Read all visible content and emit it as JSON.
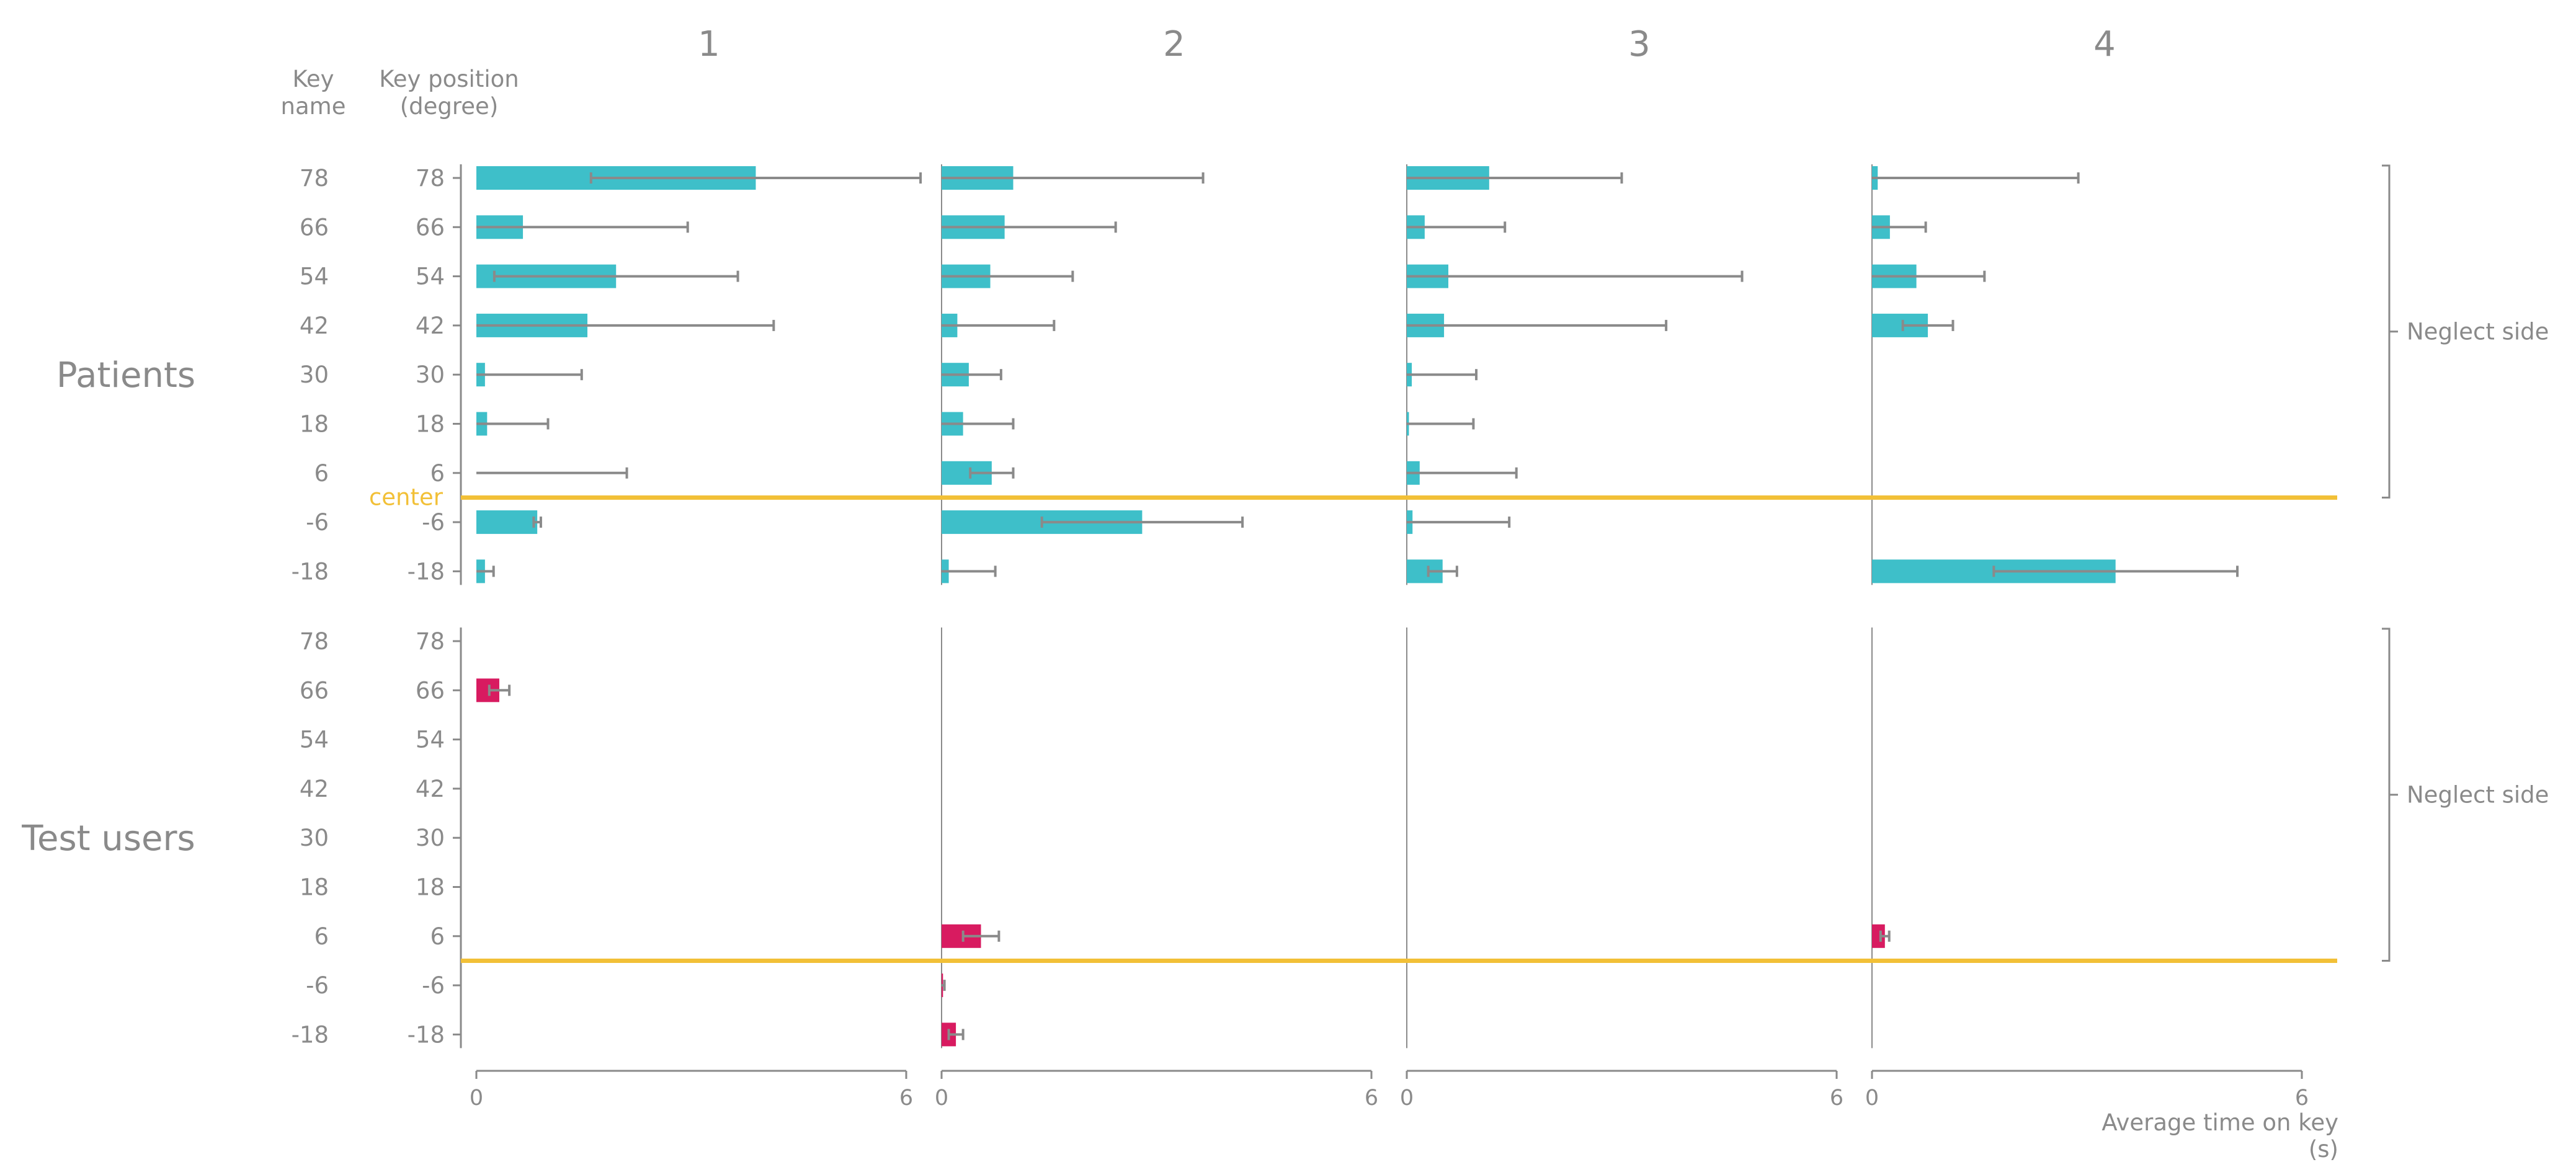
{
  "chart_data": {
    "type": "bar",
    "orientation": "horizontal",
    "panel_titles": [
      "1",
      "2",
      "3",
      "4"
    ],
    "row_header_name": "Key\nname",
    "row_header_position": "Key position\n(degree)",
    "key_names": [
      "78",
      "66",
      "54",
      "42",
      "30",
      "18",
      "6",
      "-6",
      "-18"
    ],
    "key_positions": [
      "78",
      "66",
      "54",
      "42",
      "30",
      "18",
      "6",
      "-6",
      "-18"
    ],
    "center_label": "center",
    "neglect_label": "Neglect side",
    "x_ticks": [
      "0",
      "6"
    ],
    "xlim": [
      0,
      6
    ],
    "xlabel": "Average time on key\n(s)",
    "colors": {
      "patients": "#3ebfc9",
      "test_users": "#d81b60",
      "center": "#f2c037",
      "axis": "#8a8a8a",
      "text": "#8a8a8a"
    },
    "groups": [
      {
        "name": "Patients",
        "series": [
          {
            "panel": "1",
            "values": [
              3.9,
              0.65,
              1.95,
              1.55,
              0.12,
              0.15,
              0.0,
              0.85,
              0.12
            ],
            "errors": [
              2.3,
              2.3,
              1.7,
              2.6,
              1.35,
              0.85,
              2.1,
              0.05,
              0.12
            ]
          },
          {
            "panel": "2",
            "values": [
              1.0,
              0.88,
              0.68,
              0.22,
              0.38,
              0.3,
              0.7,
              2.8,
              0.1
            ],
            "errors": [
              2.65,
              1.55,
              1.15,
              1.35,
              0.45,
              0.7,
              0.3,
              1.4,
              0.65
            ]
          },
          {
            "panel": "3",
            "values": [
              1.15,
              0.25,
              0.58,
              0.52,
              0.07,
              0.03,
              0.18,
              0.08,
              0.5
            ],
            "errors": [
              1.85,
              1.12,
              4.1,
              3.1,
              0.9,
              0.9,
              1.35,
              1.35,
              0.2
            ]
          },
          {
            "panel": "4",
            "values": [
              0.08,
              0.25,
              0.62,
              0.78,
              0.0,
              0.0,
              0.0,
              0.0,
              3.4
            ],
            "errors": [
              2.8,
              0.5,
              0.95,
              0.35,
              0.0,
              0.0,
              0.0,
              0.0,
              1.7
            ]
          }
        ]
      },
      {
        "name": "Test users",
        "series": [
          {
            "panel": "1",
            "values": [
              0.0,
              0.32,
              0.0,
              0.0,
              0.0,
              0.0,
              0.0,
              0.0,
              0.0
            ],
            "errors": [
              0.0,
              0.14,
              0.0,
              0.0,
              0.0,
              0.0,
              0.0,
              0.0,
              0.0
            ]
          },
          {
            "panel": "2",
            "values": [
              0.0,
              0.0,
              0.0,
              0.0,
              0.0,
              0.0,
              0.55,
              0.02,
              0.2
            ],
            "errors": [
              0.0,
              0.0,
              0.0,
              0.0,
              0.0,
              0.0,
              0.25,
              0.02,
              0.1
            ]
          },
          {
            "panel": "3",
            "values": [
              0.0,
              0.0,
              0.0,
              0.0,
              0.0,
              0.0,
              0.0,
              0.0,
              0.0
            ],
            "errors": [
              0.0,
              0.0,
              0.0,
              0.0,
              0.0,
              0.0,
              0.0,
              0.0,
              0.0
            ]
          },
          {
            "panel": "4",
            "values": [
              0.0,
              0.0,
              0.0,
              0.0,
              0.0,
              0.0,
              0.18,
              0.0,
              0.0
            ],
            "errors": [
              0.0,
              0.0,
              0.0,
              0.0,
              0.0,
              0.0,
              0.06,
              0.0,
              0.0
            ]
          }
        ]
      }
    ]
  }
}
